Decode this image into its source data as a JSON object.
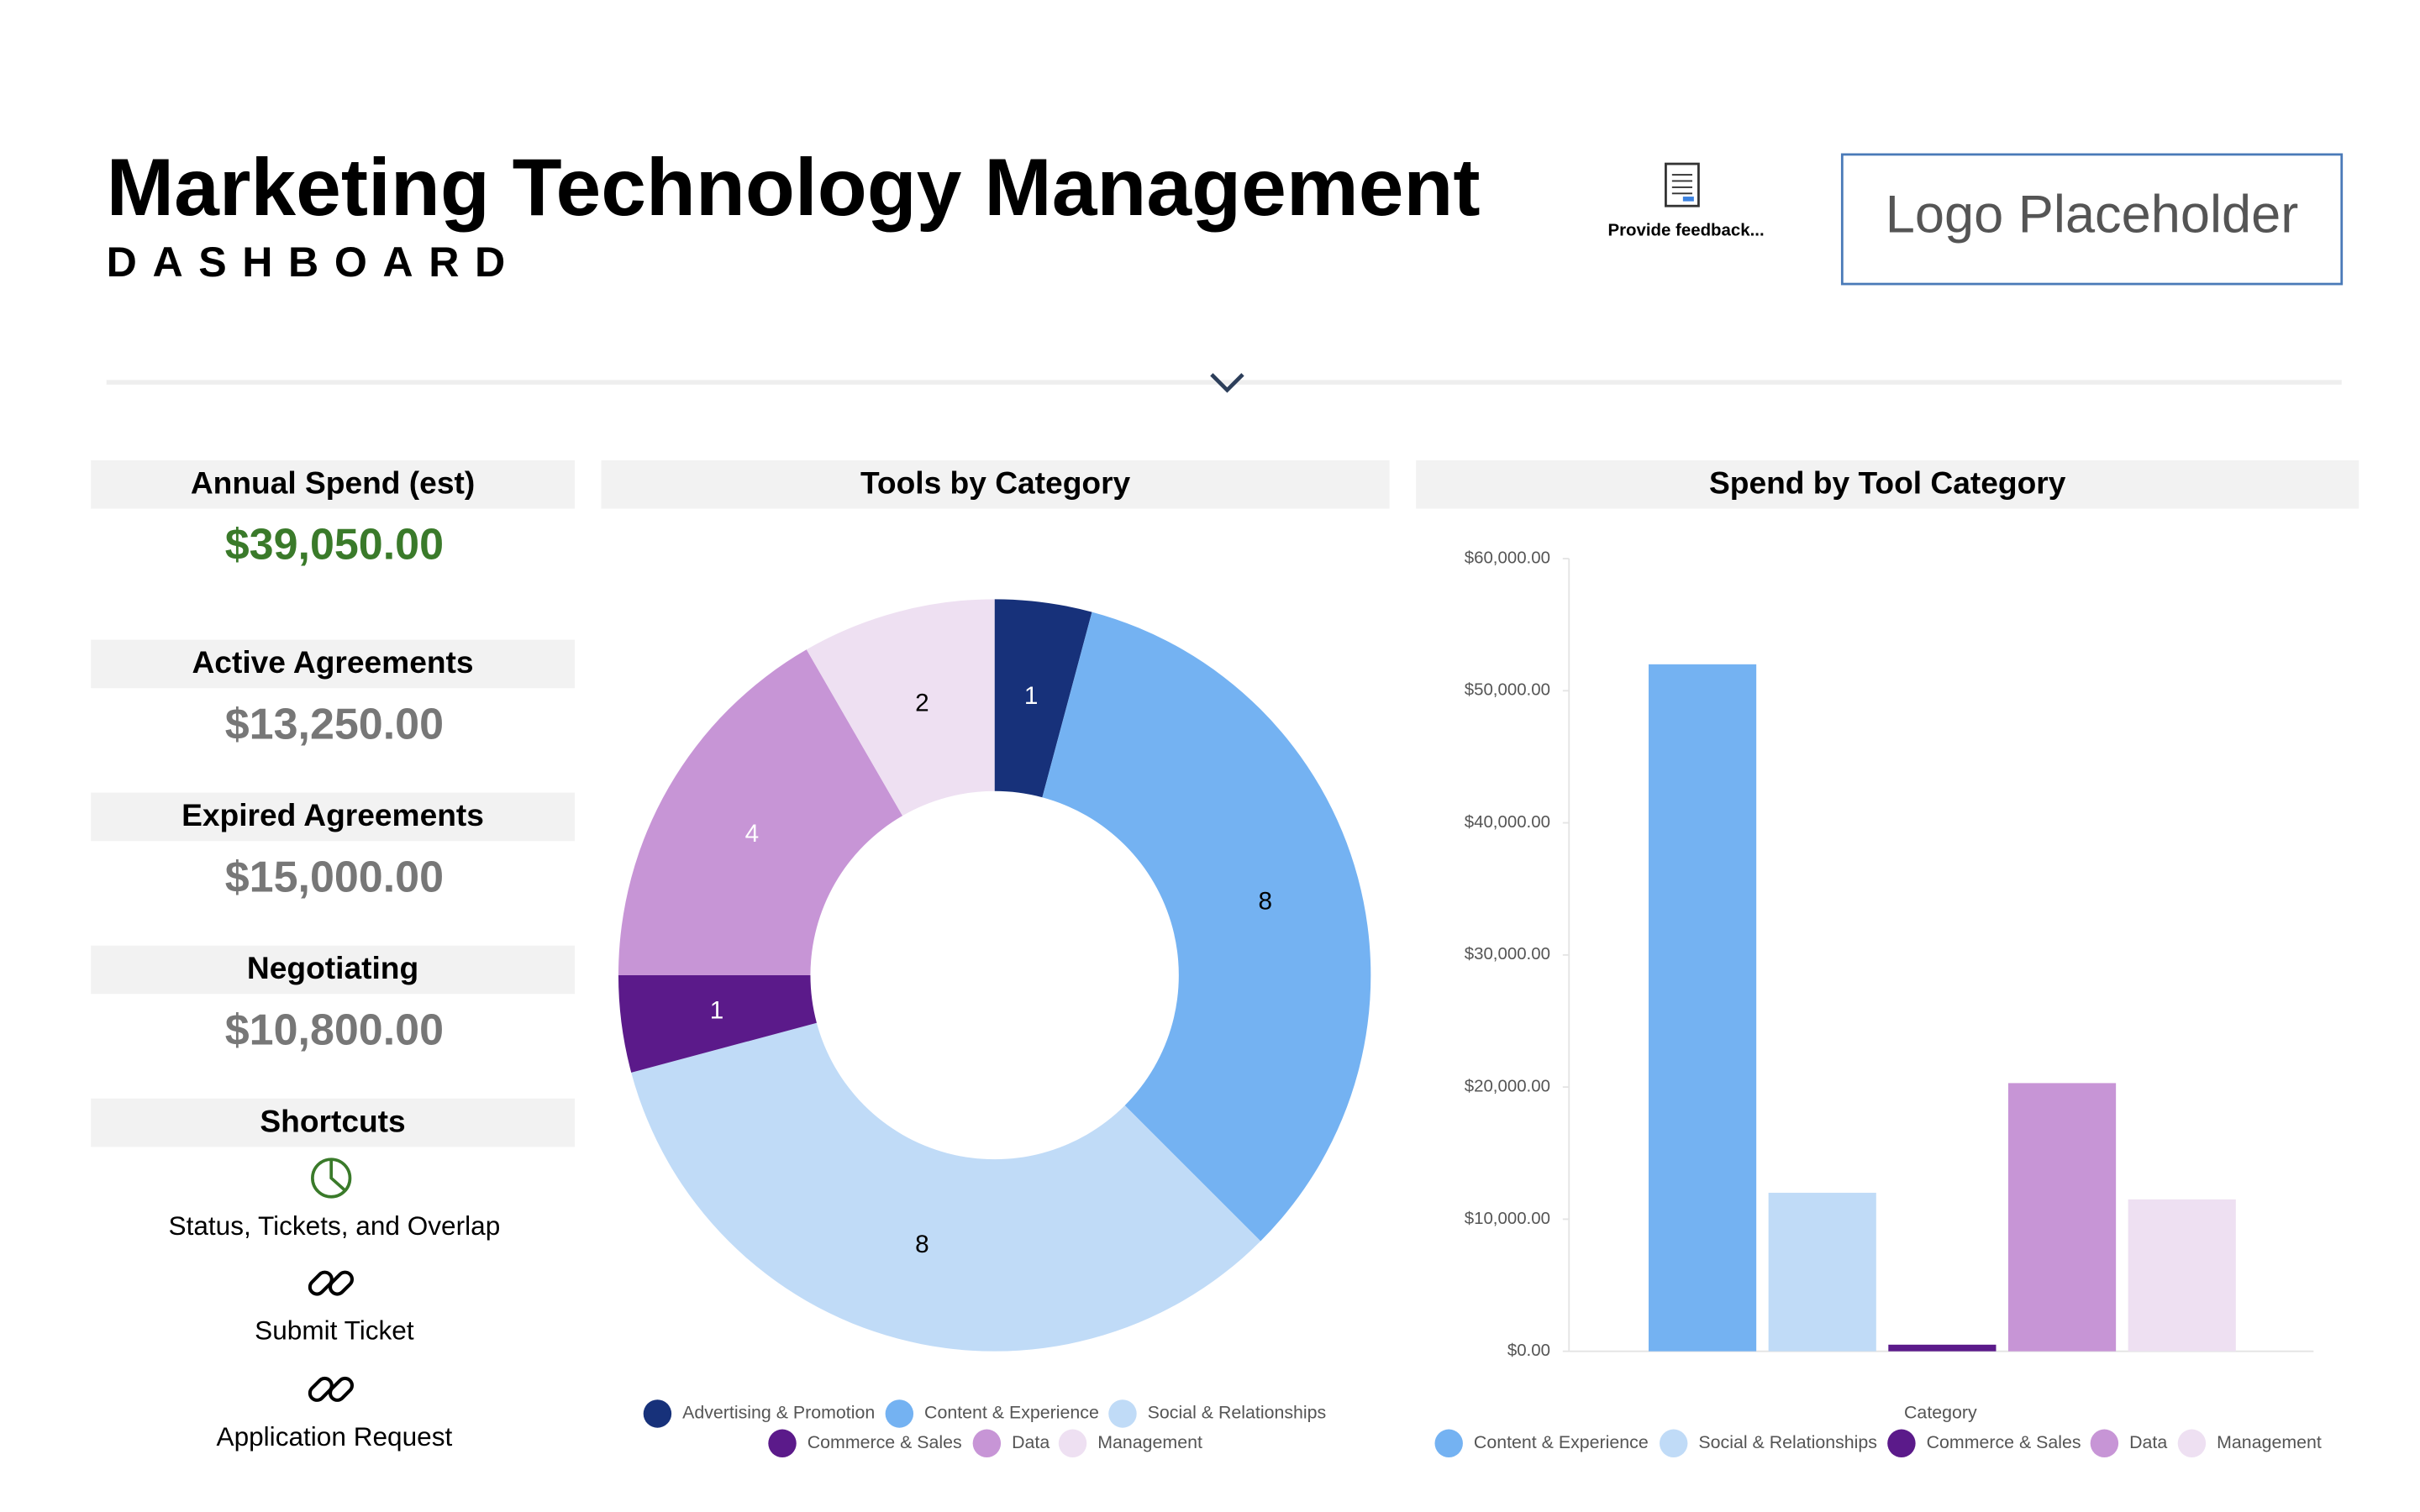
{
  "header": {
    "title": "Marketing Technology Management",
    "subtitle": "DASHBOARD",
    "feedback": "Provide feedback...",
    "logo": "Logo Placeholder"
  },
  "kpis": [
    {
      "label": "Annual Spend (est)",
      "value": "$39,050.00"
    },
    {
      "label": "Active Agreements",
      "value": "$13,250.00"
    },
    {
      "label": "Expired Agreements",
      "value": "$15,000.00"
    },
    {
      "label": "Negotiating",
      "value": "$10,800.00"
    }
  ],
  "shortcuts": {
    "title": "Shortcuts",
    "links": [
      "Status, Tickets, and Overlap",
      "Submit Ticket",
      "Application Request"
    ]
  },
  "chart_data": [
    {
      "type": "donut",
      "title": "Tools by Category",
      "categories": [
        "Advertising & Promotion",
        "Content & Experience",
        "Social & Relationships",
        "Commerce & Sales",
        "Data",
        "Management"
      ],
      "values": [
        1,
        8,
        8,
        1,
        4,
        2
      ],
      "colors": [
        "#17317a",
        "#74b2f2",
        "#c0dbf7",
        "#5b1a8a",
        "#c795d6",
        "#eee0f2"
      ]
    },
    {
      "type": "bar",
      "title": "Spend by Tool Category",
      "x_label": "Category",
      "categories": [
        "Content & Experience",
        "Social & Relationships",
        "Commerce & Sales",
        "Data",
        "Management"
      ],
      "values": [
        52000,
        12000,
        500,
        20300,
        11500
      ],
      "colors": [
        "#74b2f2",
        "#c0dbf7",
        "#5b1a8a",
        "#c795d6",
        "#eee0f2"
      ],
      "ylim": [
        0,
        60000
      ],
      "yticks": [
        {
          "value": 0,
          "label": "$0.00"
        },
        {
          "value": 10000,
          "label": "$10,000.00"
        },
        {
          "value": 20000,
          "label": "$20,000.00"
        },
        {
          "value": 30000,
          "label": "$30,000.00"
        },
        {
          "value": 40000,
          "label": "$40,000.00"
        },
        {
          "value": 50000,
          "label": "$50,000.00"
        },
        {
          "value": 60000,
          "label": "$60,000.00"
        }
      ]
    }
  ]
}
